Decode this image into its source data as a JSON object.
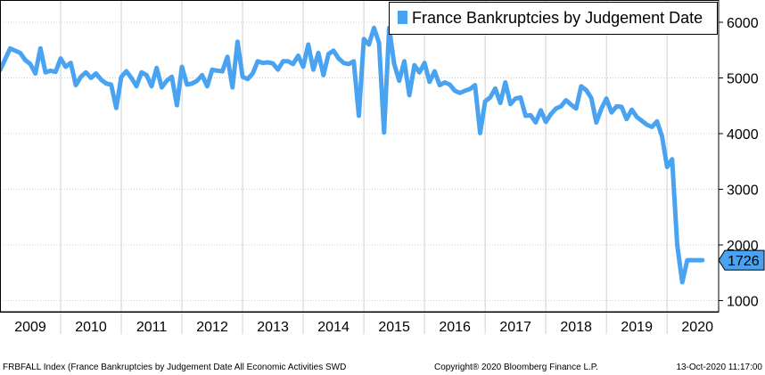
{
  "chart_data": {
    "type": "line",
    "series_name": "France Bankruptcies by Judgement Date",
    "color": "#4aa3f0",
    "grid": true,
    "legend_position": "top-right",
    "y_axis_side": "right",
    "ylim": [
      800,
      6400
    ],
    "yticks": [
      "6000",
      "5000",
      "4000",
      "3000",
      "2000",
      "1000"
    ],
    "ytick_values": [
      6000,
      5000,
      4000,
      3000,
      2000,
      1000
    ],
    "xlim": [
      2009.0,
      2020.85
    ],
    "year_labels": [
      "2009",
      "2010",
      "2011",
      "2012",
      "2013",
      "2014",
      "2015",
      "2016",
      "2017",
      "2018",
      "2019",
      "2020"
    ],
    "last_value_label": "1726",
    "x": [
      2009.0,
      2009.083,
      2009.167,
      2009.25,
      2009.333,
      2009.417,
      2009.5,
      2009.583,
      2009.667,
      2009.75,
      2009.833,
      2009.917,
      2010.0,
      2010.083,
      2010.167,
      2010.25,
      2010.333,
      2010.417,
      2010.5,
      2010.583,
      2010.667,
      2010.75,
      2010.833,
      2010.917,
      2011.0,
      2011.083,
      2011.167,
      2011.25,
      2011.333,
      2011.417,
      2011.5,
      2011.583,
      2011.667,
      2011.75,
      2011.833,
      2011.917,
      2012.0,
      2012.083,
      2012.167,
      2012.25,
      2012.333,
      2012.417,
      2012.5,
      2012.583,
      2012.667,
      2012.75,
      2012.833,
      2012.917,
      2013.0,
      2013.083,
      2013.167,
      2013.25,
      2013.333,
      2013.417,
      2013.5,
      2013.583,
      2013.667,
      2013.75,
      2013.833,
      2013.917,
      2014.0,
      2014.083,
      2014.167,
      2014.25,
      2014.333,
      2014.417,
      2014.5,
      2014.583,
      2014.667,
      2014.75,
      2014.833,
      2014.917,
      2015.0,
      2015.083,
      2015.167,
      2015.25,
      2015.333,
      2015.417,
      2015.5,
      2015.583,
      2015.667,
      2015.75,
      2015.833,
      2015.917,
      2016.0,
      2016.083,
      2016.167,
      2016.25,
      2016.333,
      2016.417,
      2016.5,
      2016.583,
      2016.667,
      2016.75,
      2016.833,
      2016.917,
      2017.0,
      2017.083,
      2017.167,
      2017.25,
      2017.333,
      2017.417,
      2017.5,
      2017.583,
      2017.667,
      2017.75,
      2017.833,
      2017.917,
      2018.0,
      2018.083,
      2018.167,
      2018.25,
      2018.333,
      2018.417,
      2018.5,
      2018.583,
      2018.667,
      2018.75,
      2018.833,
      2018.917,
      2019.0,
      2019.083,
      2019.167,
      2019.25,
      2019.333,
      2019.417,
      2019.5,
      2019.583,
      2019.667,
      2019.75,
      2019.833,
      2019.917,
      2020.0,
      2020.083,
      2020.167,
      2020.25,
      2020.333,
      2020.417,
      2020.5,
      2020.583
    ],
    "y": [
      5140,
      5330,
      5530,
      5490,
      5450,
      5320,
      5250,
      5080,
      5530,
      5100,
      5130,
      5110,
      5350,
      5200,
      5270,
      4870,
      5020,
      5100,
      5000,
      5080,
      4970,
      4900,
      4880,
      4460,
      5020,
      5120,
      5000,
      4850,
      5100,
      5050,
      4850,
      5180,
      4830,
      4950,
      5020,
      4510,
      5200,
      4880,
      4900,
      4950,
      5050,
      4850,
      5150,
      5130,
      5120,
      5380,
      4830,
      5650,
      5020,
      4980,
      5080,
      5300,
      5270,
      5280,
      5260,
      5150,
      5300,
      5300,
      5250,
      5400,
      5200,
      5600,
      5150,
      5450,
      5050,
      5430,
      5490,
      5350,
      5270,
      5250,
      5300,
      4320,
      5700,
      5600,
      5900,
      5630,
      4020,
      5900,
      5250,
      4950,
      5300,
      4690,
      5230,
      5100,
      5270,
      4930,
      5120,
      4870,
      4920,
      4880,
      4770,
      4730,
      4770,
      4800,
      4870,
      4010,
      4580,
      4650,
      4810,
      4550,
      4920,
      4530,
      4630,
      4650,
      4320,
      4330,
      4200,
      4420,
      4210,
      4350,
      4450,
      4490,
      4600,
      4520,
      4450,
      4850,
      4780,
      4640,
      4200,
      4450,
      4630,
      4380,
      4490,
      4480,
      4260,
      4430,
      4300,
      4230,
      4160,
      4120,
      4220,
      3950,
      3400,
      3540,
      2000,
      1330,
      1726,
      1726,
      1726,
      1726
    ]
  },
  "footer": {
    "left": "FRBFALL Index (France Bankruptcies by Judgement Date All Economic Activities SWD",
    "center": "Copyright® 2020 Bloomberg Finance L.P.",
    "right": "13-Oct-2020 11:17:00"
  }
}
